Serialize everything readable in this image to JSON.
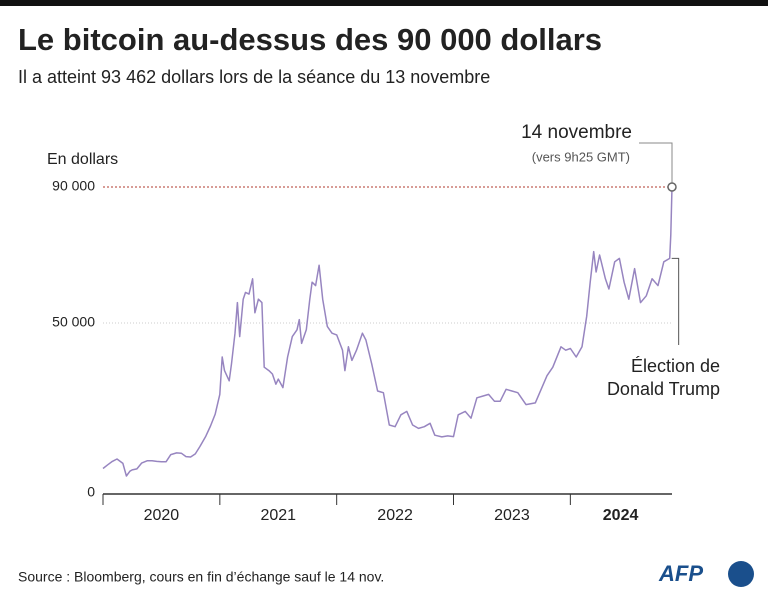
{
  "chart_data": {
    "type": "line",
    "title": "Le bitcoin au-dessus des 90 000 dollars",
    "subtitle": "Il a atteint 93 462 dollars lors de la séance du 13 novembre",
    "y_label": "En dollars",
    "source": "Source : Bloomberg, cours en fin d’échange sauf le 14 nov.",
    "logo": "AFP",
    "color": "#9785c0",
    "xlim": [
      2020,
      2024.87
    ],
    "ylim": [
      0,
      95000
    ],
    "xticks": [
      2020,
      2021,
      2022,
      2023,
      2024
    ],
    "xtick_labels": [
      {
        "value": 2020.5,
        "label": "2020"
      },
      {
        "value": 2021.5,
        "label": "2021"
      },
      {
        "value": 2022.5,
        "label": "2022"
      },
      {
        "value": 2023.5,
        "label": "2023"
      },
      {
        "value": 2024.43,
        "label": "2024"
      }
    ],
    "bold_last_label": true,
    "yticks": [
      0,
      {
        "value": 50000,
        "label": "50 000"
      },
      {
        "value": 90000,
        "label": "90 000"
      }
    ],
    "grid": true,
    "reference": {
      "value": 90000,
      "color": "#b03a2e"
    },
    "annotations": [
      {
        "text": "14 novembre",
        "subtext": "(vers 9h25 GMT)",
        "x": 2024.87,
        "y": 90000
      },
      {
        "lines": [
          "Élection de",
          "Donald Trump"
        ],
        "x": 2024.85,
        "y": 69000
      }
    ],
    "x": [
      2020.0,
      2020.04,
      2020.08,
      2020.12,
      2020.17,
      2020.2,
      2020.23,
      2020.25,
      2020.29,
      2020.33,
      2020.38,
      2020.42,
      2020.46,
      2020.5,
      2020.54,
      2020.58,
      2020.63,
      2020.67,
      2020.71,
      2020.75,
      2020.79,
      2020.83,
      2020.88,
      2020.92,
      2020.96,
      2021.0,
      2021.02,
      2021.04,
      2021.08,
      2021.1,
      2021.13,
      2021.15,
      2021.17,
      2021.2,
      2021.22,
      2021.25,
      2021.28,
      2021.3,
      2021.33,
      2021.36,
      2021.38,
      2021.42,
      2021.45,
      2021.48,
      2021.5,
      2021.54,
      2021.58,
      2021.62,
      2021.66,
      2021.68,
      2021.7,
      2021.74,
      2021.77,
      2021.79,
      2021.82,
      2021.85,
      2021.88,
      2021.92,
      2021.96,
      2022.0,
      2022.05,
      2022.07,
      2022.1,
      2022.13,
      2022.17,
      2022.22,
      2022.25,
      2022.3,
      2022.35,
      2022.4,
      2022.45,
      2022.5,
      2022.55,
      2022.6,
      2022.65,
      2022.7,
      2022.75,
      2022.8,
      2022.84,
      2022.9,
      2022.95,
      2023.0,
      2023.04,
      2023.1,
      2023.15,
      2023.2,
      2023.25,
      2023.3,
      2023.35,
      2023.4,
      2023.45,
      2023.5,
      2023.55,
      2023.62,
      2023.7,
      2023.8,
      2023.85,
      2023.92,
      2023.96,
      2024.0,
      2024.05,
      2024.1,
      2024.14,
      2024.17,
      2024.2,
      2024.22,
      2024.25,
      2024.3,
      2024.33,
      2024.38,
      2024.42,
      2024.46,
      2024.5,
      2024.55,
      2024.6,
      2024.65,
      2024.7,
      2024.75,
      2024.8,
      2024.85,
      2024.86,
      2024.87
    ],
    "values": [
      7200,
      8300,
      9300,
      10000,
      8700,
      5000,
      6400,
      6800,
      7100,
      8800,
      9500,
      9500,
      9300,
      9200,
      9200,
      11300,
      11800,
      11700,
      10700,
      10600,
      11500,
      13700,
      16700,
      19700,
      23200,
      29000,
      40000,
      36000,
      33000,
      38000,
      47000,
      56000,
      46000,
      57000,
      59000,
      58500,
      63000,
      53000,
      57000,
      56000,
      37000,
      36000,
      35000,
      32000,
      33500,
      31000,
      40000,
      46000,
      48000,
      51000,
      44000,
      48000,
      57000,
      62000,
      61000,
      67000,
      57000,
      49000,
      47000,
      46500,
      42000,
      36000,
      43000,
      39000,
      42000,
      47000,
      45000,
      38000,
      30000,
      29500,
      20000,
      19500,
      23000,
      24000,
      20000,
      19000,
      19500,
      20500,
      17000,
      16500,
      16800,
      16600,
      23000,
      24000,
      22000,
      28000,
      28500,
      29000,
      27000,
      27000,
      30500,
      30000,
      29500,
      26000,
      26500,
      34500,
      37000,
      43000,
      42000,
      42500,
      40000,
      43000,
      52000,
      62000,
      71000,
      65000,
      70000,
      63000,
      60000,
      68000,
      69000,
      62000,
      57000,
      66000,
      56000,
      58000,
      63000,
      61000,
      68000,
      69000,
      76000,
      90000
    ]
  }
}
